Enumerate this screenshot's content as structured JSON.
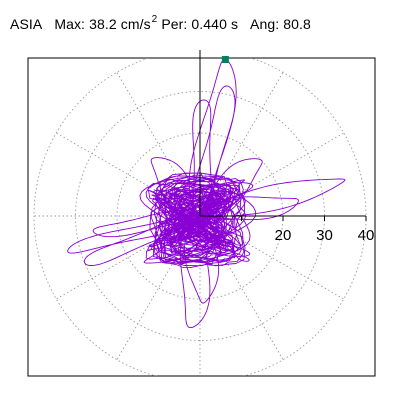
{
  "header": {
    "station": "ASIA",
    "max_label": "Max:",
    "max_value": "38.2",
    "max_unit": "cm/s",
    "max_unit_exp": "2",
    "per_label": "Per:",
    "per_value": "0.440 s",
    "ang_label": "Ang:",
    "ang_value": "80.8"
  },
  "chart_data": {
    "type": "scatter",
    "subtype": "polar-hodogram",
    "title": "",
    "radial_ticks": [
      10,
      20,
      30,
      40
    ],
    "radial_tick_labels": [
      "20",
      "30",
      "40"
    ],
    "rmax": 40,
    "peak": {
      "r": 38.2,
      "angle_deg": 80.8
    },
    "grid": true,
    "colors": {
      "trace": "#8a00d4",
      "peak_marker": "#008060",
      "grid": "#999999",
      "axis": "#000000"
    }
  }
}
